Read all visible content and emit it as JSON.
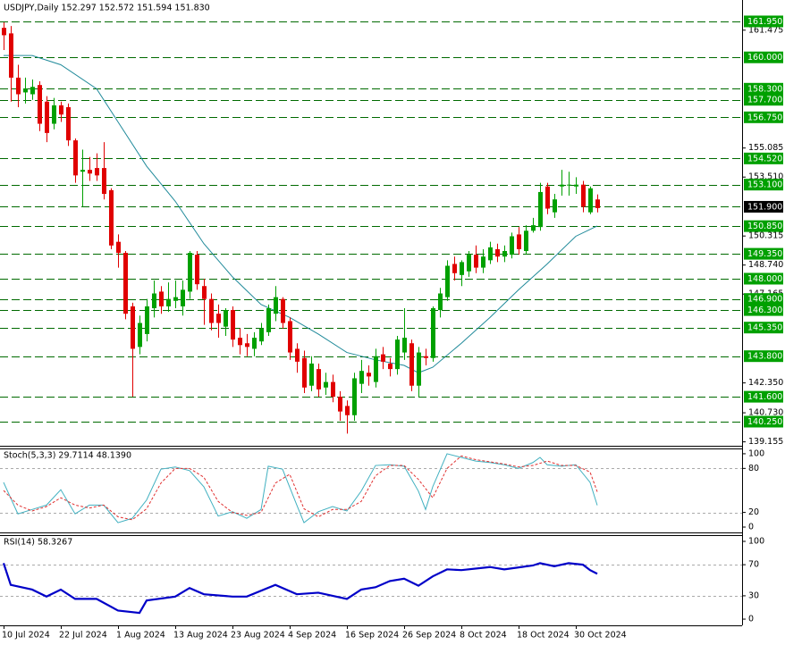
{
  "chart_data": [
    {
      "type": "candlestick",
      "title": "USDJPY,Daily  152.297 152.572 151.594 151.830",
      "categories": [
        "10 Jul 2024",
        null,
        null,
        null,
        null,
        null,
        null,
        null,
        "22 Jul 2024",
        null,
        null,
        null,
        null,
        null,
        null,
        null,
        "1 Aug 2024",
        null,
        null,
        null,
        null,
        null,
        null,
        null,
        "13 Aug 2024",
        null,
        null,
        null,
        null,
        null,
        null,
        null,
        "23 Aug 2024",
        null,
        null,
        null,
        null,
        null,
        null,
        null,
        "4 Sep 2024",
        null,
        null,
        null,
        null,
        null,
        null,
        null,
        "16 Sep 2024",
        null,
        null,
        null,
        null,
        null,
        null,
        null,
        "26 Sep 2024",
        null,
        null,
        null,
        null,
        null,
        null,
        null,
        "8 Oct 2024",
        null,
        null,
        null,
        null,
        null,
        null,
        null,
        "18 Oct 2024",
        null,
        null,
        null,
        null,
        null,
        null,
        null,
        "30 Oct 2024",
        null,
        null,
        null
      ],
      "open": [
        161.6,
        161.3,
        158.9,
        158.1,
        158.0,
        158.5,
        157.6,
        156.4,
        157.4,
        157.3,
        155.5,
        153.8,
        153.9,
        154.0,
        154.0,
        152.8,
        150.0,
        149.4,
        146.5,
        144.3,
        145.0,
        146.4,
        147.3,
        146.5,
        146.8,
        146.5,
        147.3,
        149.3,
        147.6,
        146.9,
        146.1,
        145.4,
        146.3,
        144.8,
        144.5,
        144.2,
        144.6,
        145.1,
        146.1,
        146.9,
        145.7,
        144.2,
        143.7,
        142.2,
        143.1,
        142.1,
        142.4,
        141.6,
        141.1,
        140.6,
        142.3,
        142.9,
        142.4,
        143.9,
        143.4,
        143.1,
        144.0,
        144.5,
        142.2,
        143.8,
        143.7,
        146.3,
        147.0,
        148.8,
        148.2,
        148.4,
        149.3,
        148.6,
        149.0,
        149.6,
        149.2,
        149.3,
        150.4,
        149.5,
        150.6,
        150.8,
        153.0,
        151.6,
        153.0,
        153.1,
        153.0,
        153.1,
        151.6,
        152.297
      ],
      "high": [
        161.9,
        161.7,
        159.6,
        158.9,
        158.8,
        158.7,
        157.9,
        157.8,
        157.6,
        157.5,
        155.6,
        155.0,
        154.6,
        154.8,
        155.4,
        152.9,
        150.4,
        149.5,
        146.7,
        146.0,
        146.9,
        147.9,
        147.6,
        147.8,
        147.9,
        147.9,
        149.5,
        149.5,
        148.0,
        147.2,
        146.6,
        146.4,
        146.5,
        145.3,
        145.0,
        145.1,
        145.6,
        146.6,
        147.6,
        147.0,
        145.9,
        144.5,
        144.1,
        143.8,
        143.4,
        142.9,
        142.8,
        141.9,
        141.4,
        142.9,
        143.6,
        143.3,
        144.2,
        144.3,
        143.7,
        144.9,
        146.4,
        144.7,
        144.3,
        144.2,
        146.5,
        147.5,
        149.0,
        149.2,
        149.0,
        149.5,
        149.8,
        149.6,
        150.0,
        149.9,
        149.8,
        150.5,
        150.8,
        150.9,
        151.3,
        153.2,
        153.2,
        152.6,
        153.9,
        153.8,
        153.5,
        153.3,
        153.0,
        152.572
      ],
      "low": [
        160.4,
        157.6,
        157.3,
        157.5,
        157.7,
        156.0,
        155.4,
        156.1,
        156.5,
        155.2,
        153.2,
        151.9,
        153.3,
        153.3,
        152.3,
        149.6,
        148.6,
        145.8,
        141.6,
        143.9,
        144.6,
        145.9,
        146.1,
        146.2,
        146.4,
        146.0,
        146.9,
        147.4,
        145.5,
        145.2,
        144.8,
        144.9,
        144.3,
        143.9,
        143.8,
        143.8,
        144.4,
        144.9,
        145.7,
        145.3,
        143.6,
        142.9,
        141.8,
        141.9,
        141.6,
        141.7,
        141.3,
        140.3,
        139.6,
        140.3,
        141.8,
        142.2,
        142.1,
        143.1,
        142.7,
        142.8,
        143.6,
        141.9,
        141.6,
        143.3,
        143.5,
        145.9,
        146.8,
        147.9,
        147.6,
        148.1,
        148.3,
        148.3,
        148.8,
        148.9,
        148.9,
        149.1,
        149.3,
        149.3,
        150.5,
        150.6,
        151.5,
        151.3,
        152.5,
        152.5,
        152.6,
        151.6,
        151.5,
        151.594
      ],
      "close": [
        161.2,
        158.9,
        158.0,
        158.3,
        158.4,
        156.4,
        155.9,
        157.4,
        156.9,
        155.5,
        153.6,
        153.9,
        153.7,
        153.6,
        152.6,
        149.8,
        149.4,
        146.1,
        144.2,
        145.6,
        146.5,
        147.2,
        146.5,
        146.9,
        147.0,
        147.4,
        149.4,
        147.7,
        146.9,
        145.6,
        145.6,
        146.3,
        144.7,
        144.4,
        144.3,
        144.8,
        145.3,
        146.4,
        147.0,
        145.6,
        144.0,
        143.5,
        142.1,
        143.4,
        142.0,
        142.4,
        141.6,
        140.8,
        140.6,
        142.6,
        143.0,
        142.7,
        143.8,
        143.5,
        143.1,
        144.7,
        144.8,
        142.2,
        144.0,
        143.7,
        146.4,
        147.2,
        148.7,
        148.3,
        148.9,
        149.3,
        148.6,
        149.2,
        149.7,
        149.2,
        149.5,
        150.3,
        149.6,
        150.6,
        150.9,
        152.7,
        151.8,
        152.3,
        153.1,
        153.1,
        153.1,
        151.9,
        152.9,
        151.83
      ],
      "up_color": "#00a000",
      "down_color": "#e00000",
      "ma": {
        "color": "#208a9a",
        "x": [
          0,
          4,
          8,
          13,
          16,
          20,
          24,
          28,
          32,
          36,
          40,
          44,
          48,
          52,
          56,
          58,
          60,
          64,
          68,
          72,
          76,
          80,
          83
        ],
        "values": [
          160.1,
          160.1,
          159.6,
          158.3,
          156.5,
          154.1,
          152.2,
          149.9,
          148.1,
          146.6,
          145.9,
          145.0,
          144.0,
          143.6,
          143.3,
          142.9,
          143.2,
          144.5,
          145.9,
          147.4,
          148.8,
          150.3,
          150.86
        ]
      },
      "ylim": [
        138.99,
        163.11
      ],
      "yticks": [
        161.475,
        155.085,
        {
          "value": 153.51,
          "label": "153.510"
        },
        150.315,
        {
          "value": 148.74,
          "label": "148.740"
        },
        147.165,
        {
          "value": 142.35,
          "label": "142.350"
        },
        {
          "value": 140.73,
          "label": "140.730"
        },
        139.155
      ],
      "level_color": "#00a000",
      "levels": [
        {
          "value": 161.95,
          "label": "161.950"
        },
        {
          "value": 160,
          "label": "160.000"
        },
        {
          "value": 158.3,
          "label": "158.300"
        },
        {
          "value": 157.7,
          "label": "157.700"
        },
        {
          "value": 156.75,
          "label": "156.750"
        },
        {
          "value": 154.52,
          "label": "154.520"
        },
        {
          "value": 153.1,
          "label": "153.100"
        },
        {
          "value": 151.9,
          "label": "151.900",
          "color": "#000000"
        },
        {
          "value": 150.85,
          "label": "150.850"
        },
        {
          "value": 149.35,
          "label": "149.350"
        },
        {
          "value": 148,
          "label": "148.000"
        },
        {
          "value": 146.9,
          "label": "146.900"
        },
        {
          "value": 146.3,
          "label": "146.300"
        },
        {
          "value": 145.35,
          "label": "145.350"
        },
        {
          "value": 143.8,
          "label": "143.800"
        },
        {
          "value": 141.6,
          "label": "141.600"
        },
        {
          "value": 140.25,
          "label": "140.250"
        }
      ]
    },
    {
      "type": "line",
      "title": "Stoch(5,3,3) 29.7114 48.1390",
      "series": [
        {
          "color": "#40b0c0",
          "dashed": false,
          "x": [
            0,
            2,
            4,
            6,
            8,
            10,
            12,
            14,
            16,
            18,
            20,
            22,
            24,
            26,
            28,
            30,
            32,
            34,
            36,
            37,
            39,
            41,
            42,
            44,
            46,
            48,
            50,
            52,
            54,
            56,
            58,
            59,
            60,
            62,
            64,
            66,
            68,
            70,
            72,
            74,
            75,
            76,
            78,
            80,
            82,
            83
          ],
          "values": [
            61,
            18,
            24,
            30,
            51,
            18,
            30,
            30,
            6,
            12,
            37,
            79,
            82,
            77,
            55,
            15,
            21,
            12,
            24,
            83,
            79,
            30,
            6,
            21,
            28,
            22,
            49,
            84,
            85,
            83,
            49,
            24,
            55,
            100,
            95,
            90,
            88,
            85,
            80,
            88,
            95,
            85,
            83,
            85,
            61,
            29.7114
          ]
        },
        {
          "color": "#e03030",
          "dashed": true,
          "x": [
            0,
            2,
            4,
            6,
            8,
            10,
            12,
            14,
            16,
            18,
            20,
            22,
            24,
            26,
            28,
            30,
            32,
            34,
            36,
            38,
            40,
            42,
            44,
            46,
            48,
            50,
            52,
            54,
            56,
            58,
            60,
            62,
            64,
            66,
            68,
            70,
            72,
            74,
            76,
            78,
            80,
            82,
            83
          ],
          "values": [
            50,
            30,
            22,
            28,
            40,
            30,
            26,
            30,
            14,
            10,
            25,
            60,
            80,
            80,
            68,
            35,
            20,
            16,
            20,
            60,
            72,
            25,
            14,
            24,
            24,
            35,
            70,
            84,
            84,
            65,
            40,
            80,
            97,
            92,
            89,
            86,
            82,
            84,
            90,
            84,
            84,
            75,
            48.139
          ]
        }
      ],
      "ylim": [
        -7.3,
        106
      ],
      "yticks": [
        0,
        20,
        80,
        100
      ],
      "levels": [
        20,
        80
      ]
    },
    {
      "type": "line",
      "title": "RSI(14) 58.3267",
      "series": [
        {
          "color": "#0000c8",
          "dashed": false,
          "x": [
            0,
            1,
            4,
            6,
            8,
            10,
            13,
            16,
            19,
            20,
            24,
            26,
            28,
            32,
            34,
            38,
            41,
            44,
            48,
            50,
            52,
            54,
            56,
            58,
            60,
            62,
            64,
            68,
            70,
            74,
            75,
            77,
            79,
            81,
            82,
            83
          ],
          "values": [
            72,
            44,
            38,
            29,
            38,
            26,
            26,
            11,
            8,
            24,
            29,
            40,
            32,
            29,
            29,
            44,
            32,
            34,
            26,
            38,
            41,
            49,
            52,
            43,
            55,
            64,
            63,
            67,
            64,
            69,
            72,
            68,
            72,
            70,
            63,
            58.3267
          ]
        }
      ],
      "ylim": [
        -8,
        106.9
      ],
      "yticks": [
        0,
        30,
        70,
        100
      ],
      "levels": [
        30,
        70
      ]
    }
  ]
}
